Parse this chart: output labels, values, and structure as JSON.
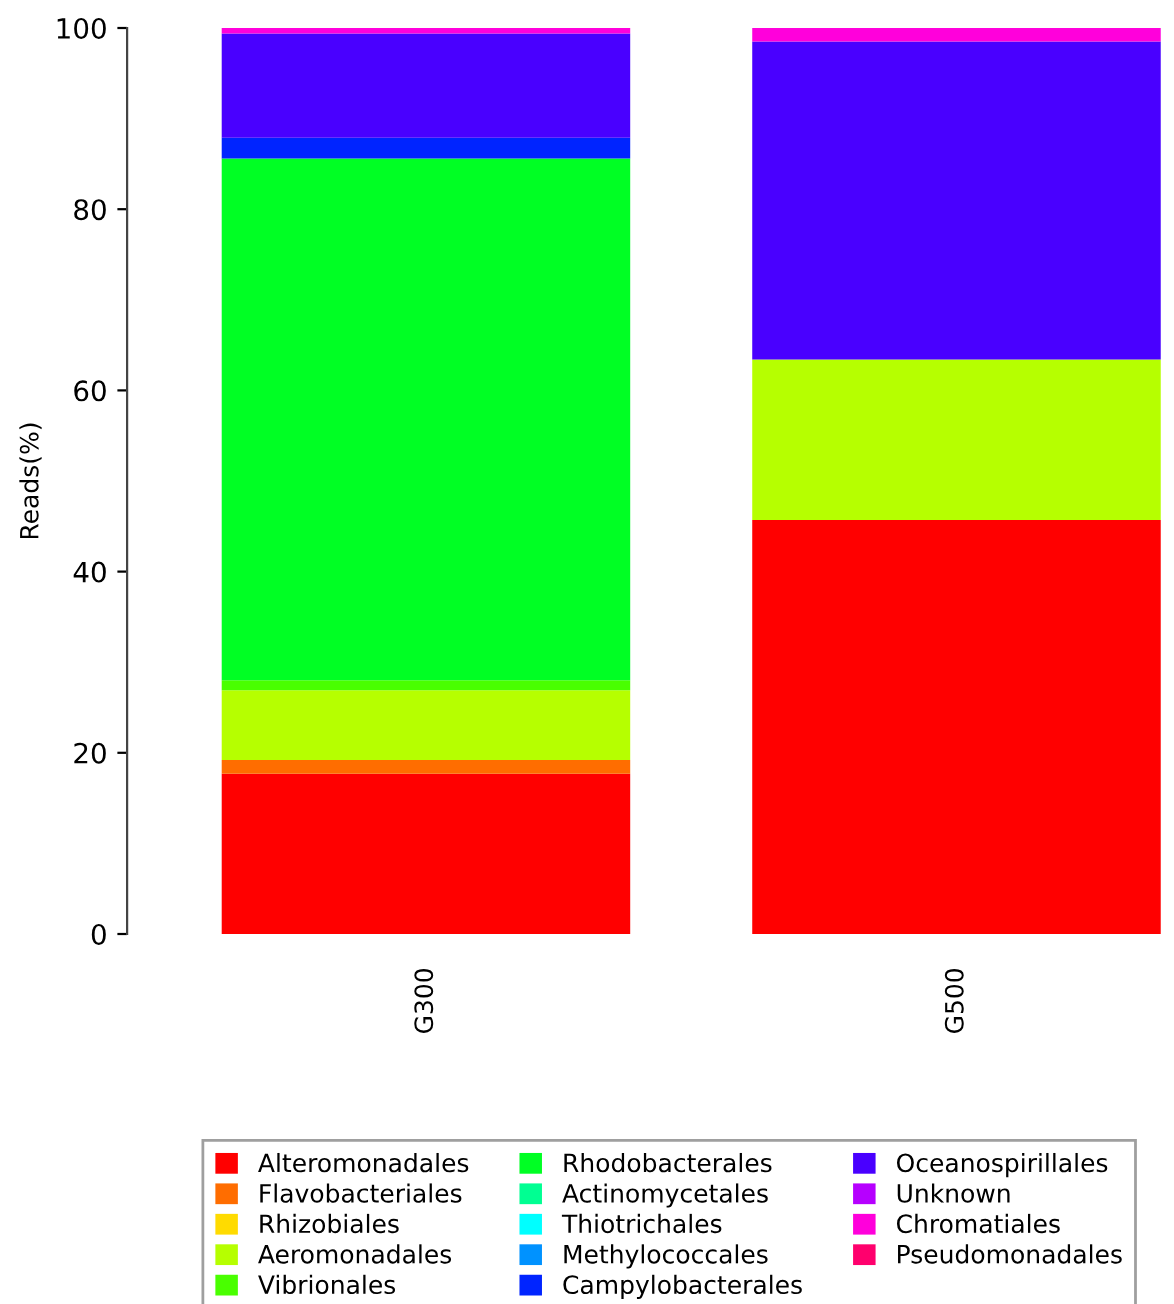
{
  "chart_data": {
    "type": "bar",
    "stacked": true,
    "ylabel": "Reads(%)",
    "categories": [
      "G300",
      "G500"
    ],
    "ylim": [
      0,
      100
    ],
    "yticks": [
      0,
      20,
      40,
      60,
      80,
      100
    ],
    "grid": false,
    "legend": "bottom",
    "series": [
      {
        "name": "Alteromonadales",
        "color": "#ff0000",
        "values": [
          17.7,
          45.7
        ]
      },
      {
        "name": "Flavobacteriales",
        "color": "#ff6d00",
        "values": [
          1.5,
          0
        ]
      },
      {
        "name": "Rhizobiales",
        "color": "#ffdb00",
        "values": [
          0,
          0
        ]
      },
      {
        "name": "Aeromonadales",
        "color": "#b6ff00",
        "values": [
          7.7,
          17.7
        ]
      },
      {
        "name": "Vibrionales",
        "color": "#49ff00",
        "values": [
          1.1,
          0
        ]
      },
      {
        "name": "Rhodobacterales",
        "color": "#00ff24",
        "values": [
          57.6,
          0
        ]
      },
      {
        "name": "Actinomycetales",
        "color": "#00ff92",
        "values": [
          0,
          0
        ]
      },
      {
        "name": "Thiotrichales",
        "color": "#00ffff",
        "values": [
          0,
          0
        ]
      },
      {
        "name": "Methylococcales",
        "color": "#0092ff",
        "values": [
          0,
          0
        ]
      },
      {
        "name": "Campylobacterales",
        "color": "#0024ff",
        "values": [
          2.3,
          0
        ]
      },
      {
        "name": "Oceanospirillales",
        "color": "#4900ff",
        "values": [
          11.5,
          35.1
        ]
      },
      {
        "name": "Unknown",
        "color": "#b600ff",
        "values": [
          0,
          0
        ]
      },
      {
        "name": "Chromatiales",
        "color": "#ff00db",
        "values": [
          0.6,
          1.5
        ]
      },
      {
        "name": "Pseudomonadales",
        "color": "#ff006d",
        "values": [
          0,
          0
        ]
      }
    ]
  }
}
